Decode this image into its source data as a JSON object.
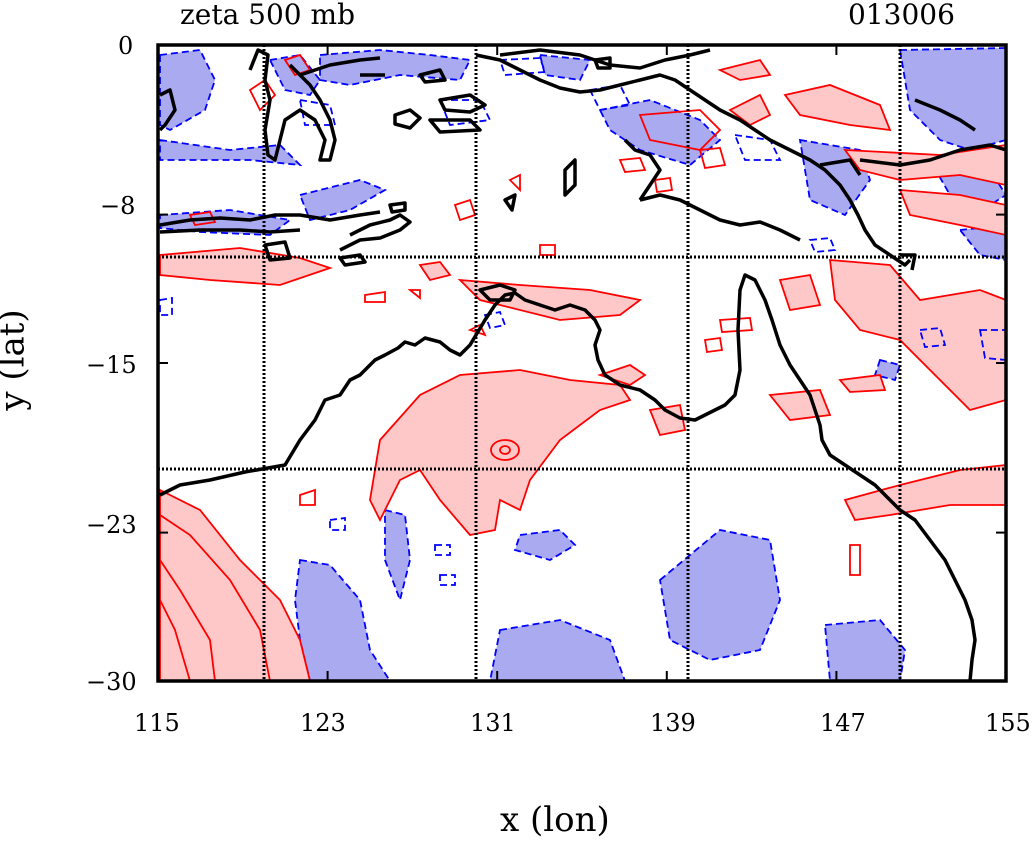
{
  "header": {
    "title": "zeta 500 mb",
    "stamp": "013006"
  },
  "chart_data": {
    "type": "heatmap",
    "title": "zeta 500 mb",
    "xlabel": "x (lon)",
    "ylabel": "y (lat)",
    "xlim": [
      115,
      155
    ],
    "ylim": [
      -30,
      0
    ],
    "x_ticks": [
      "115",
      "123",
      "131",
      "139",
      "147",
      "155"
    ],
    "y_ticks": [
      "0",
      "−8",
      "−15",
      "−23",
      "−30"
    ],
    "gridlines_lon": [
      120,
      130,
      140,
      150
    ],
    "gridlines_lat": [
      -10,
      -20
    ],
    "grid": true,
    "colors": {
      "positive_fill": "#ffc8c8",
      "positive_line": "#ff0000",
      "negative_fill": "#aaaaf0",
      "negative_line": "#0000ff",
      "coast": "#000000"
    }
  }
}
